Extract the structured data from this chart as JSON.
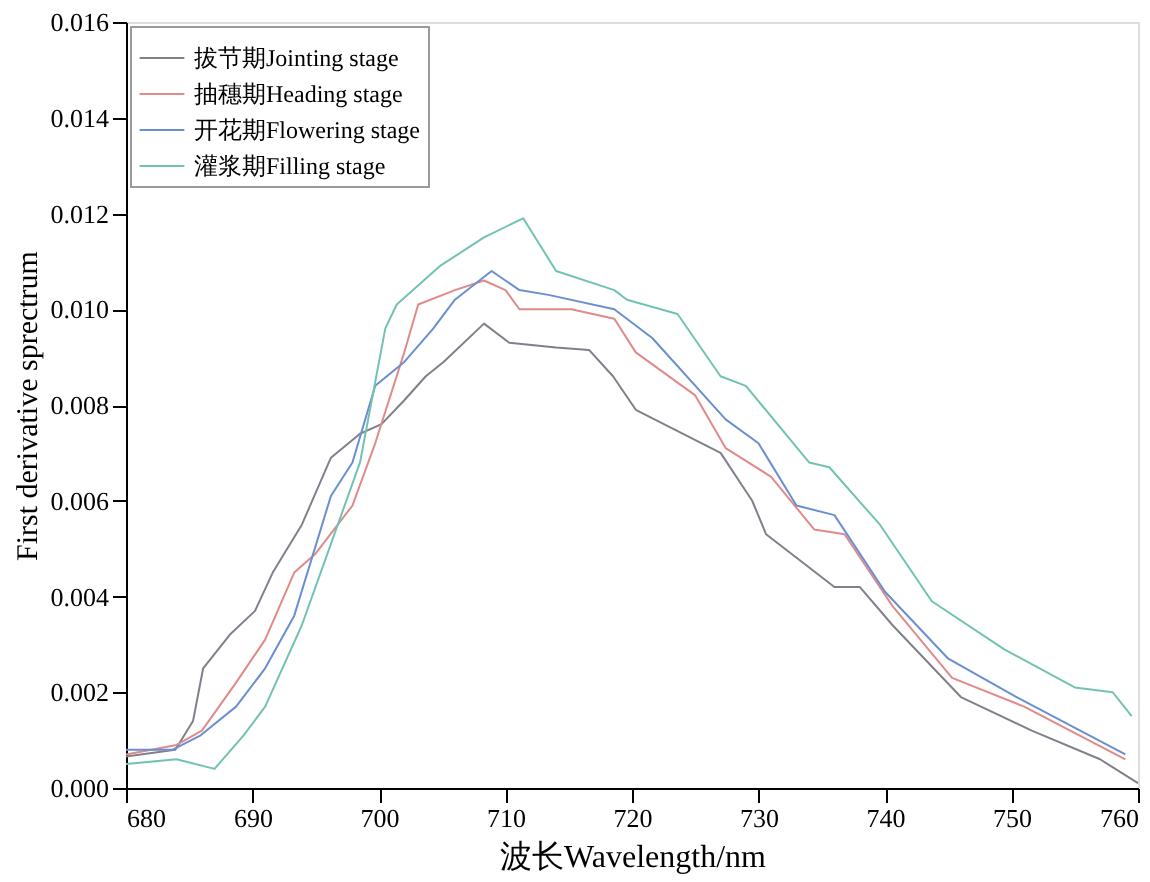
{
  "chart_data": {
    "type": "line",
    "xlabel": "波长Wavelength/nm",
    "ylabel": "First derivative sprectrum",
    "xlim": [
      680,
      760
    ],
    "xticks": [
      680,
      690,
      700,
      710,
      720,
      730,
      740,
      750,
      760
    ],
    "ylim": [
      0,
      0.016
    ],
    "yticks": [
      {
        "value": 0,
        "label": "0.000"
      },
      {
        "value": 0.002,
        "label": "0.002"
      },
      {
        "value": 0.004,
        "label": "0.004"
      },
      {
        "value": 0.006,
        "label": "0.006"
      },
      {
        "value": 0.008,
        "label": "0.008"
      },
      {
        "value": 0.01,
        "label": "0.010"
      },
      {
        "value": 0.012,
        "label": "0.012"
      },
      {
        "value": 0.014,
        "label": "0.014"
      },
      {
        "value": 0.016,
        "label": "0.016"
      }
    ],
    "grid": false,
    "legend": "top left",
    "marker": "none",
    "line_style": "solid",
    "series": [
      {
        "name": "拔节期Jointing stage",
        "color": "#80808c",
        "x": [
          680,
          683.9,
          685.3,
          686.1,
          688.2,
          690.2,
          691.6,
          693.9,
          696.2,
          698.5,
          700.2,
          702,
          703.7,
          705.1,
          708.3,
          710.3,
          714,
          716.6,
          718.5,
          720.3,
          727,
          729.5,
          730.6,
          736,
          738,
          740.6,
          746,
          751.6,
          757,
          760
        ],
        "values": [
          0.00066,
          0.0008,
          0.0014,
          0.0025,
          0.0032,
          0.0037,
          0.0045,
          0.0055,
          0.0069,
          0.0074,
          0.0076,
          0.0081,
          0.0086,
          0.0089,
          0.0097,
          0.0093,
          0.0092,
          0.00915,
          0.0086,
          0.0079,
          0.007,
          0.006,
          0.0053,
          0.0042,
          0.0042,
          0.0034,
          0.0019,
          0.0012,
          0.0006,
          0.0001
        ]
      },
      {
        "name": "抽穗期Heading stage",
        "color": "#e08a8a",
        "x": [
          680,
          684,
          686,
          688.7,
          691,
          693.3,
          695,
          697.9,
          699.7,
          702,
          703.1,
          706,
          708.3,
          710,
          711.1,
          715.2,
          718.6,
          720.3,
          725,
          727.4,
          731,
          734.4,
          736.8,
          740.6,
          745.3,
          751,
          759
        ],
        "values": [
          0.0007,
          0.0009,
          0.0012,
          0.0022,
          0.0031,
          0.0045,
          0.0049,
          0.0059,
          0.0072,
          0.0091,
          0.0101,
          0.0104,
          0.0106,
          0.0104,
          0.01,
          0.01,
          0.0098,
          0.0091,
          0.0082,
          0.0071,
          0.0065,
          0.0054,
          0.0053,
          0.0038,
          0.0023,
          0.0017,
          0.0006
        ]
      },
      {
        "name": "开花期Flowering stage",
        "color": "#6a8fd0",
        "x": [
          680,
          683.7,
          685.9,
          688.7,
          691,
          693.3,
          696.2,
          697.9,
          699.7,
          702,
          704.3,
          706,
          708.9,
          711.1,
          713.4,
          718.6,
          721.6,
          727.4,
          730,
          733,
          736,
          740,
          745,
          750.4,
          759
        ],
        "values": [
          0.0008,
          0.0008,
          0.0011,
          0.0017,
          0.0025,
          0.0036,
          0.0061,
          0.0068,
          0.0084,
          0.0089,
          0.0096,
          0.0102,
          0.0108,
          0.0104,
          0.0103,
          0.01,
          0.0094,
          0.0077,
          0.0072,
          0.0059,
          0.0057,
          0.0041,
          0.0027,
          0.0019,
          0.0007
        ]
      },
      {
        "name": "灌浆期Filling stage",
        "color": "#72c2b4",
        "x": [
          680,
          684,
          687,
          689.3,
          691,
          693.9,
          696.2,
          698.5,
          700.5,
          701.4,
          704.8,
          708.3,
          711.4,
          714,
          718.6,
          719.6,
          723.6,
          727,
          729,
          734,
          735.6,
          739.6,
          743.7,
          749.4,
          755,
          758,
          759.5
        ],
        "values": [
          0.0005,
          0.0006,
          0.0004,
          0.0011,
          0.0017,
          0.0034,
          0.0051,
          0.0068,
          0.0096,
          0.0101,
          0.0109,
          0.0115,
          0.0119,
          0.0108,
          0.0104,
          0.0102,
          0.0099,
          0.0086,
          0.0084,
          0.0068,
          0.0067,
          0.0055,
          0.0039,
          0.0029,
          0.0021,
          0.002,
          0.0015
        ]
      }
    ]
  }
}
